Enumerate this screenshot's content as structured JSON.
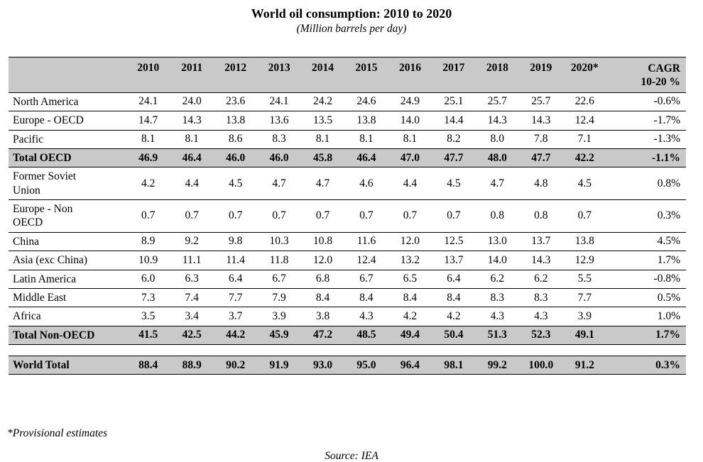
{
  "page": {
    "title": "World oil consumption: 2010 to 2020",
    "subtitle": "(Million barrels per day)",
    "footnote": "*Provisional estimates",
    "source": "Source: IEA"
  },
  "colors": {
    "header_bg": "#c9c9c9",
    "total_row_bg": "#c9c9c9",
    "border": "#000000",
    "text": "#000000",
    "page_bg": "#ffffff"
  },
  "chart_data": {
    "type": "table",
    "title": "World oil consumption: 2010 to 2020",
    "unit": "Million barrels per day",
    "source": "IEA",
    "footnote": "*Provisional estimates",
    "years": [
      "2010",
      "2011",
      "2012",
      "2013",
      "2014",
      "2015",
      "2016",
      "2017",
      "2018",
      "2019",
      "2020*"
    ],
    "cagr_header": [
      "CAGR",
      "10-20 %"
    ],
    "rows": [
      {
        "name": "North America",
        "values": [
          "24.1",
          "24.0",
          "23.6",
          "24.1",
          "24.2",
          "24.6",
          "24.9",
          "25.1",
          "25.7",
          "25.7",
          "22.6"
        ],
        "cagr": "-0.6%",
        "style": "normal"
      },
      {
        "name": "Europe - OECD",
        "values": [
          "14.7",
          "14.3",
          "13.8",
          "13.6",
          "13.5",
          "13.8",
          "14.0",
          "14.4",
          "14.3",
          "14.3",
          "12.4"
        ],
        "cagr": "-1.7%",
        "style": "normal"
      },
      {
        "name": "Pacific",
        "values": [
          "8.1",
          "8.1",
          "8.6",
          "8.3",
          "8.1",
          "8.1",
          "8.1",
          "8.2",
          "8.0",
          "7.8",
          "7.1"
        ],
        "cagr": "-1.3%",
        "style": "normal"
      },
      {
        "name": "Total OECD",
        "values": [
          "46.9",
          "46.4",
          "46.0",
          "46.0",
          "45.8",
          "46.4",
          "47.0",
          "47.7",
          "48.0",
          "47.7",
          "42.2"
        ],
        "cagr": "-1.1%",
        "style": "total"
      },
      {
        "name": "Former Soviet Union",
        "values": [
          "4.2",
          "4.4",
          "4.5",
          "4.7",
          "4.7",
          "4.6",
          "4.4",
          "4.5",
          "4.7",
          "4.8",
          "4.5"
        ],
        "cagr": "0.8%",
        "style": "normal"
      },
      {
        "name": "Europe - Non OECD",
        "values": [
          "0.7",
          "0.7",
          "0.7",
          "0.7",
          "0.7",
          "0.7",
          "0.7",
          "0.7",
          "0.8",
          "0.8",
          "0.7"
        ],
        "cagr": "0.3%",
        "style": "normal"
      },
      {
        "name": "China",
        "values": [
          "8.9",
          "9.2",
          "9.8",
          "10.3",
          "10.8",
          "11.6",
          "12.0",
          "12.5",
          "13.0",
          "13.7",
          "13.8"
        ],
        "cagr": "4.5%",
        "style": "normal"
      },
      {
        "name": "Asia (exc China)",
        "values": [
          "10.9",
          "11.1",
          "11.4",
          "11.8",
          "12.0",
          "12.4",
          "13.2",
          "13.7",
          "14.0",
          "14.3",
          "12.9"
        ],
        "cagr": "1.7%",
        "style": "normal"
      },
      {
        "name": "Latin America",
        "values": [
          "6.0",
          "6.3",
          "6.4",
          "6.7",
          "6.8",
          "6.7",
          "6.5",
          "6.4",
          "6.2",
          "6.2",
          "5.5"
        ],
        "cagr": "-0.8%",
        "style": "normal"
      },
      {
        "name": "Middle East",
        "values": [
          "7.3",
          "7.4",
          "7.7",
          "7.9",
          "8.4",
          "8.4",
          "8.4",
          "8.4",
          "8.3",
          "8.3",
          "7.7"
        ],
        "cagr": "0.5%",
        "style": "normal"
      },
      {
        "name": "Africa",
        "values": [
          "3.5",
          "3.4",
          "3.7",
          "3.9",
          "3.8",
          "4.3",
          "4.2",
          "4.2",
          "4.3",
          "4.3",
          "3.9"
        ],
        "cagr": "1.0%",
        "style": "normal"
      },
      {
        "name": "Total Non-OECD",
        "values": [
          "41.5",
          "42.5",
          "44.2",
          "45.9",
          "47.2",
          "48.5",
          "49.4",
          "50.4",
          "51.3",
          "52.3",
          "49.1"
        ],
        "cagr": "1.7%",
        "style": "total"
      },
      {
        "name": "",
        "values": [],
        "cagr": "",
        "style": "spacer"
      },
      {
        "name": "World Total",
        "values": [
          "88.4",
          "88.9",
          "90.2",
          "91.9",
          "93.0",
          "95.0",
          "96.4",
          "98.1",
          "99.2",
          "100.0",
          "91.2"
        ],
        "cagr": "0.3%",
        "style": "total world"
      }
    ]
  }
}
